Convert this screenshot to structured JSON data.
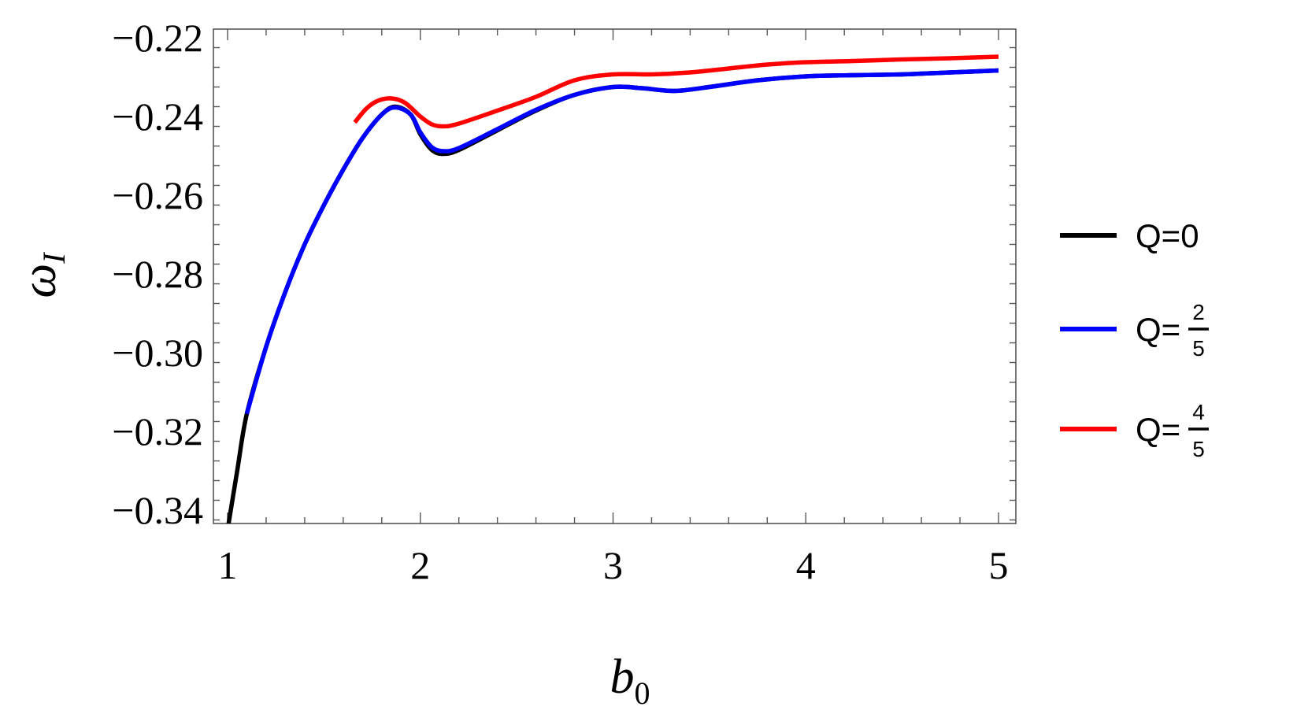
{
  "chart_data": {
    "type": "line",
    "title": "",
    "xlabel": "b_0",
    "ylabel": "ω_I",
    "xlim": [
      0.93,
      5.09
    ],
    "ylim": [
      -0.3534,
      -0.2178
    ],
    "x_ticks": [
      1,
      2,
      3,
      4,
      5
    ],
    "x_tick_labels": [
      "1",
      "2",
      "3",
      "4",
      "5"
    ],
    "y_ticks": [
      -0.22,
      -0.24,
      -0.26,
      -0.28,
      -0.3,
      -0.32,
      -0.34
    ],
    "y_tick_labels": [
      "−0.22",
      "−0.24",
      "−0.26",
      "−0.28",
      "−0.30",
      "−0.32",
      "−0.34"
    ],
    "grid": false,
    "legend_position": "right",
    "series": [
      {
        "name": "Q=0",
        "label_main": "Q=",
        "label_value": "0",
        "color": "#000000",
        "x": [
          1.0,
          1.05,
          1.1,
          1.2,
          1.3,
          1.4,
          1.5,
          1.6,
          1.7,
          1.8,
          1.87,
          1.95,
          2.0,
          2.06,
          2.12,
          2.2,
          2.4,
          2.6,
          2.8,
          3.0,
          3.15,
          3.32,
          3.5,
          3.75,
          4.0,
          4.25,
          4.5,
          4.75,
          5.0
        ],
        "y": [
          -0.345,
          -0.33,
          -0.3155,
          -0.2985,
          -0.2845,
          -0.2725,
          -0.2625,
          -0.2535,
          -0.2455,
          -0.2395,
          -0.2375,
          -0.2395,
          -0.2445,
          -0.2485,
          -0.2495,
          -0.2485,
          -0.2435,
          -0.2385,
          -0.2345,
          -0.2325,
          -0.2328,
          -0.2335,
          -0.2325,
          -0.2308,
          -0.2298,
          -0.2295,
          -0.2293,
          -0.2288,
          -0.2283
        ]
      },
      {
        "name": "Q=2/5",
        "label_main": "Q=",
        "label_num": "2",
        "label_den": "5",
        "color": "#0000ff",
        "x": [
          1.1,
          1.2,
          1.3,
          1.4,
          1.5,
          1.6,
          1.7,
          1.8,
          1.87,
          1.95,
          2.0,
          2.06,
          2.12,
          2.2,
          2.4,
          2.6,
          2.8,
          3.0,
          3.15,
          3.32,
          3.5,
          3.75,
          4.0,
          4.25,
          4.5,
          4.75,
          5.0
        ],
        "y": [
          -0.3155,
          -0.2985,
          -0.2845,
          -0.2725,
          -0.2625,
          -0.2535,
          -0.2455,
          -0.2395,
          -0.2377,
          -0.2395,
          -0.244,
          -0.2478,
          -0.2488,
          -0.248,
          -0.2432,
          -0.2383,
          -0.2345,
          -0.2325,
          -0.2328,
          -0.2335,
          -0.2325,
          -0.2308,
          -0.2298,
          -0.2295,
          -0.2293,
          -0.2288,
          -0.2283
        ]
      },
      {
        "name": "Q=4/5",
        "label_main": "Q=",
        "label_num": "4",
        "label_den": "5",
        "color": "#ff0000",
        "x": [
          1.66,
          1.72,
          1.78,
          1.85,
          1.92,
          2.0,
          2.06,
          2.12,
          2.2,
          2.4,
          2.6,
          2.8,
          3.0,
          3.2,
          3.4,
          3.6,
          3.8,
          4.0,
          4.25,
          4.5,
          4.75,
          5.0
        ],
        "y": [
          -0.2415,
          -0.238,
          -0.236,
          -0.2354,
          -0.2365,
          -0.24,
          -0.242,
          -0.2425,
          -0.2418,
          -0.2385,
          -0.235,
          -0.2308,
          -0.2293,
          -0.2293,
          -0.2288,
          -0.2278,
          -0.2268,
          -0.2262,
          -0.2259,
          -0.2255,
          -0.2252,
          -0.2248
        ]
      }
    ]
  },
  "axes": {
    "x_label_main": "b",
    "x_label_sub": "0",
    "y_label_main": "ω",
    "y_label_sub": "I"
  },
  "legend": {
    "items": [
      {
        "main": "Q=0",
        "color": "#000000"
      },
      {
        "main": "Q=",
        "num": "2",
        "den": "5",
        "color": "#0000ff"
      },
      {
        "main": "Q=",
        "num": "4",
        "den": "5",
        "color": "#ff0000"
      }
    ]
  }
}
